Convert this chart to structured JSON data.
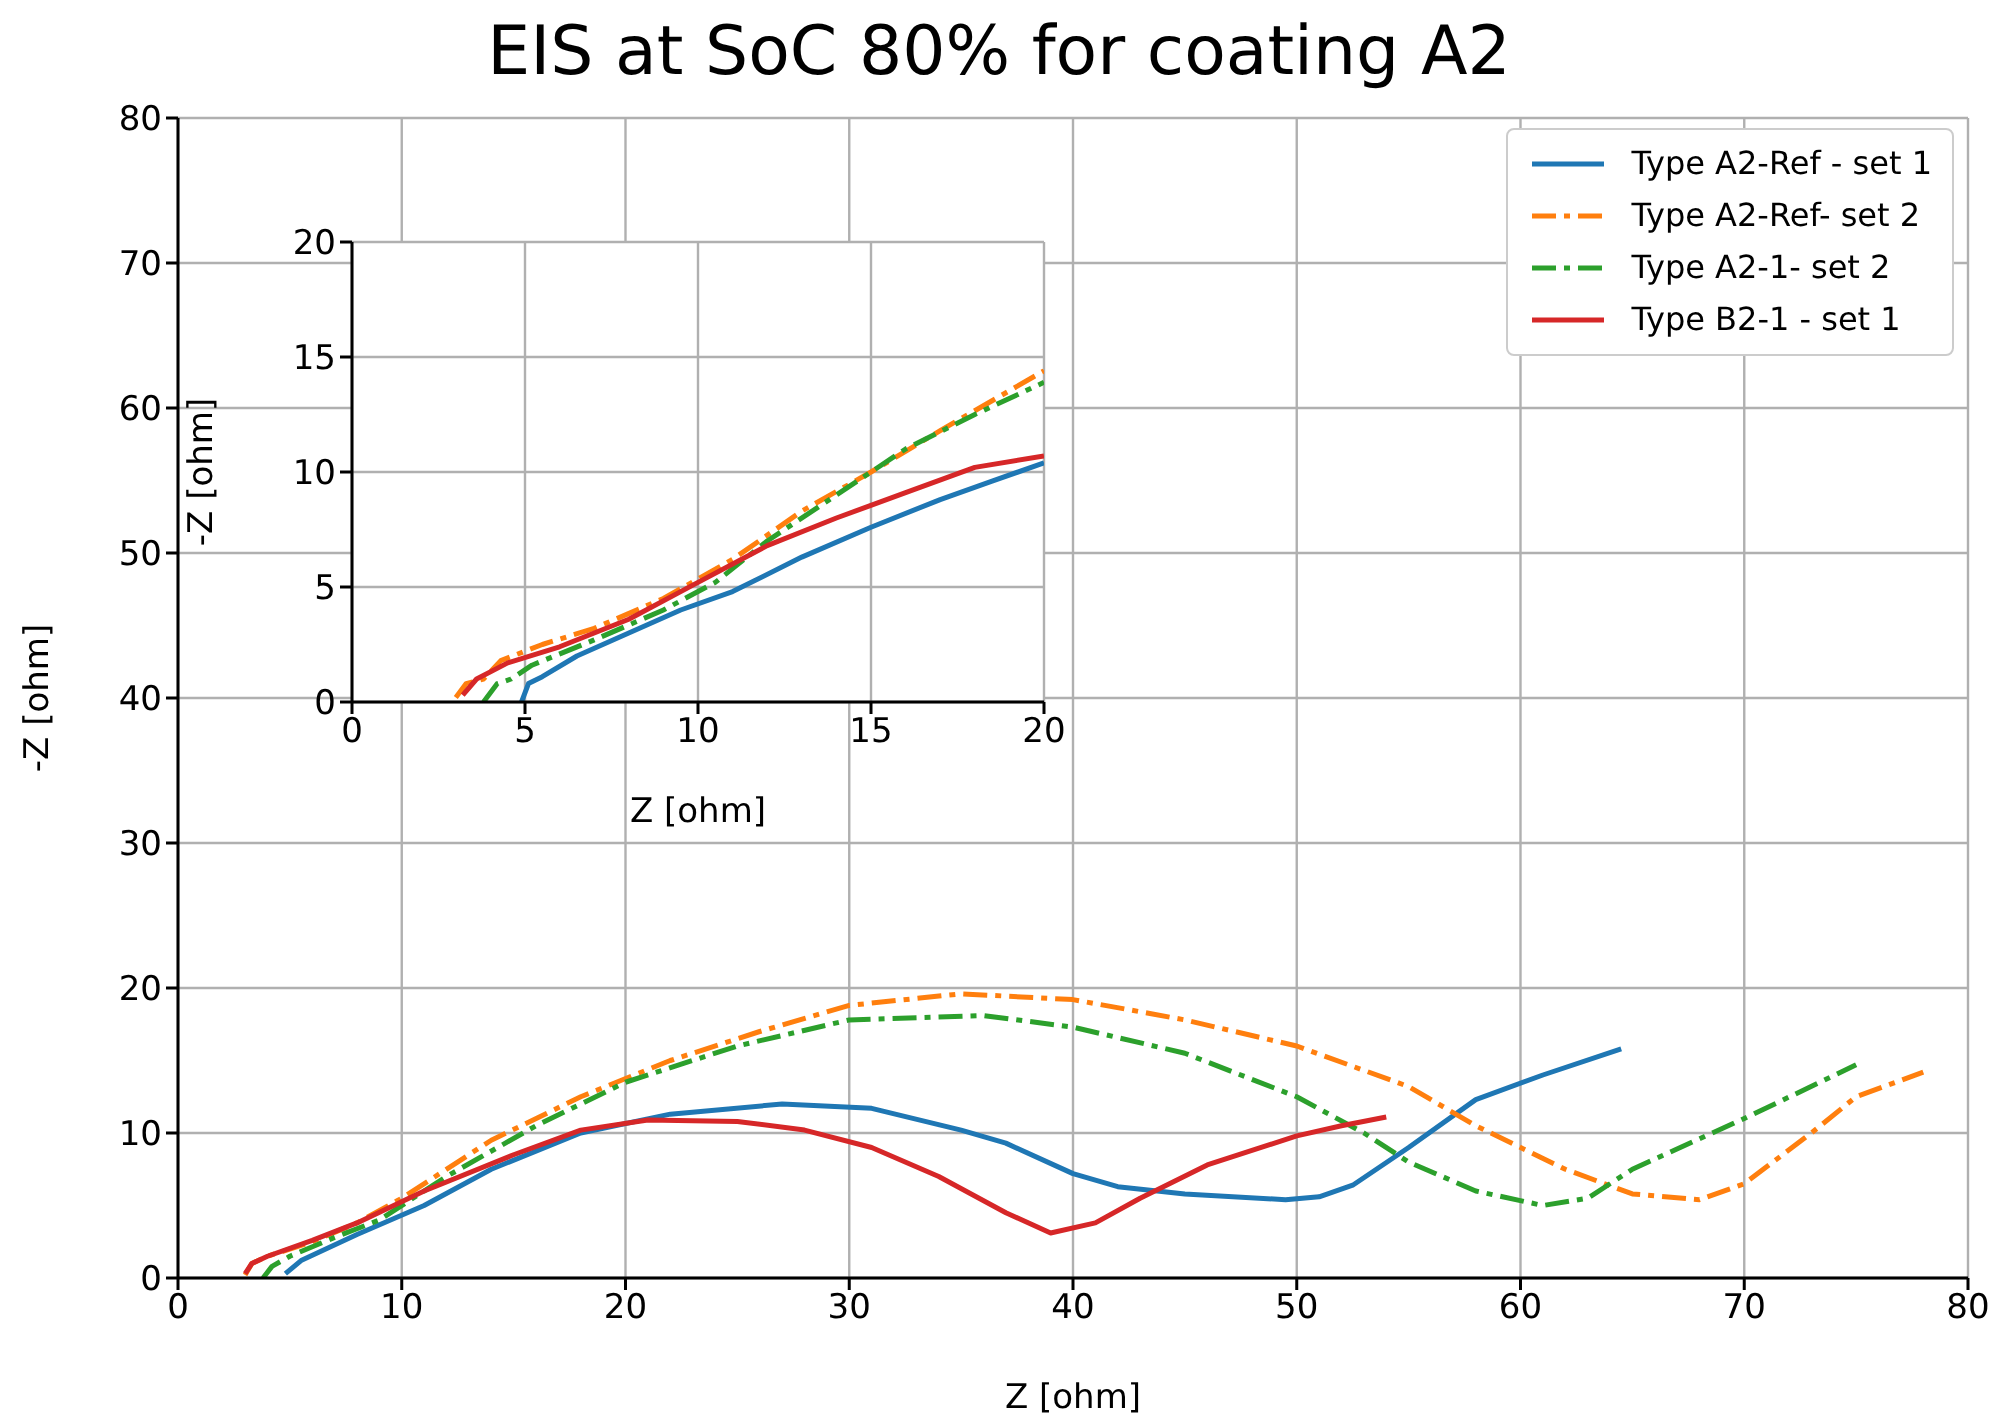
{
  "chart_data": [
    {
      "type": "line",
      "title": "EIS at SoC 80% for coating A2",
      "xlabel": "Z [ohm]",
      "ylabel": "-Z [ohm]",
      "xlim": [
        0,
        80
      ],
      "ylim": [
        0,
        80
      ],
      "xticks": [
        0,
        10,
        20,
        30,
        40,
        50,
        60,
        70,
        80
      ],
      "yticks": [
        0,
        10,
        20,
        30,
        40,
        50,
        60,
        70,
        80
      ],
      "grid": true,
      "legend": "top right",
      "marker": "none",
      "series": [
        {
          "name": "Type A2-Ref - set 1",
          "color": "#1f77b4",
          "line_style": "solid",
          "x": [
            4.8,
            5.5,
            8,
            11,
            14,
            18,
            22,
            27,
            31,
            35,
            37,
            40,
            42,
            45,
            49.5,
            51,
            52.5,
            55,
            58,
            61,
            64.5
          ],
          "values": [
            0.3,
            1.2,
            3,
            5,
            7.5,
            10,
            11.3,
            12,
            11.7,
            10.2,
            9.3,
            7.2,
            6.3,
            5.8,
            5.4,
            5.6,
            6.4,
            9,
            12.3,
            14,
            15.8
          ]
        },
        {
          "name": "Type A2-Ref- set 2",
          "color": "#ff7f0e",
          "line_style": "dashed",
          "x": [
            3,
            3.3,
            4,
            6,
            8,
            10,
            14,
            18,
            22,
            26,
            30,
            35,
            40,
            45,
            50,
            55,
            58,
            62,
            65,
            68,
            70,
            73,
            75,
            78
          ],
          "values": [
            0.2,
            1,
            1.5,
            2.5,
            3.8,
            5.5,
            9.5,
            12.5,
            15,
            17,
            18.8,
            19.6,
            19.2,
            17.8,
            16,
            13.2,
            10.5,
            7.5,
            5.8,
            5.4,
            6.5,
            10,
            12.5,
            14.2
          ]
        },
        {
          "name": "Type A2-1- set 2",
          "color": "#2ca02c",
          "line_style": "dashed",
          "x": [
            3.8,
            4.2,
            5,
            7,
            9,
            12,
            16,
            20,
            25,
            30,
            36,
            40,
            45,
            50,
            53,
            55,
            58,
            61,
            63,
            65,
            70,
            75
          ],
          "values": [
            0,
            0.8,
            1.5,
            2.8,
            4,
            7,
            10.5,
            13.5,
            16,
            17.8,
            18.1,
            17.3,
            15.5,
            12.5,
            10,
            8,
            6,
            5,
            5.5,
            7.5,
            11,
            14.7
          ]
        },
        {
          "name": "Type B2-1 - set 1",
          "color": "#d62728",
          "line_style": "solid",
          "x": [
            3,
            3.3,
            4,
            6,
            8,
            11,
            15,
            18,
            21,
            25,
            28,
            31,
            34,
            37,
            39,
            41,
            43,
            46,
            50,
            52,
            54
          ],
          "values": [
            0.3,
            1,
            1.5,
            2.6,
            3.8,
            6,
            8.5,
            10.2,
            10.9,
            10.8,
            10.2,
            9,
            7,
            4.5,
            3.1,
            3.8,
            5.5,
            7.8,
            9.8,
            10.5,
            11.1
          ]
        }
      ]
    },
    {
      "type": "line",
      "xlabel": "Z [ohm]",
      "ylabel": "-Z [ohm]",
      "xlim": [
        0,
        20
      ],
      "ylim": [
        0,
        20
      ],
      "xticks": [
        0,
        5,
        10,
        15,
        20
      ],
      "yticks": [
        0,
        5,
        10,
        15,
        20
      ],
      "grid": true,
      "marker": "none",
      "series": [
        {
          "color": "#1f77b4",
          "line_style": "solid",
          "x": [
            4.9,
            5.1,
            5.5,
            6.5,
            8,
            9.5,
            11,
            13,
            15,
            17,
            18.5,
            20
          ],
          "values": [
            0,
            0.8,
            1.1,
            2,
            3,
            4,
            4.8,
            6.3,
            7.6,
            8.8,
            9.6,
            10.4
          ]
        },
        {
          "color": "#ff7f0e",
          "line_style": "dashed",
          "x": [
            3,
            3.3,
            3.8,
            4.3,
            5.5,
            7,
            9,
            11,
            13,
            15,
            17,
            20
          ],
          "values": [
            0.2,
            0.8,
            1,
            1.8,
            2.5,
            3.2,
            4.5,
            6.2,
            8.3,
            10,
            11.8,
            14.4
          ]
        },
        {
          "color": "#2ca02c",
          "line_style": "dashed",
          "x": [
            3.8,
            4.2,
            4.6,
            5.2,
            7,
            9,
            10.5,
            12,
            14,
            16,
            18,
            20
          ],
          "values": [
            0,
            0.8,
            1,
            1.6,
            2.7,
            4,
            5.2,
            7,
            9,
            11,
            12.5,
            13.9
          ]
        },
        {
          "color": "#d62728",
          "line_style": "solid",
          "x": [
            3.2,
            3.6,
            4.5,
            6,
            8,
            10,
            12,
            14,
            16,
            18,
            20
          ],
          "values": [
            0.3,
            1,
            1.7,
            2.4,
            3.6,
            5.2,
            6.8,
            8,
            9.1,
            10.2,
            10.7
          ]
        }
      ]
    }
  ]
}
